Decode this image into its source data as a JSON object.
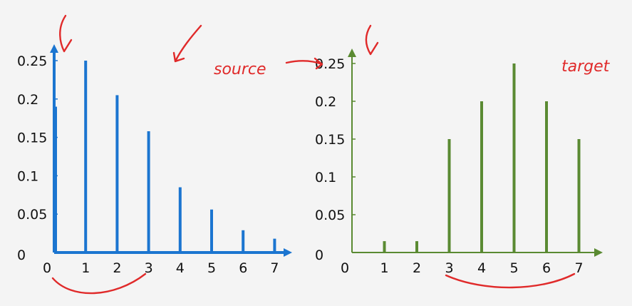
{
  "colors": {
    "background": "#f4f4f4",
    "source_series": "#1b75d0",
    "target_series": "#5a8a32",
    "annotation": "#e02a2a"
  },
  "annotations": {
    "source_note": "source",
    "target_note": "target"
  },
  "chart_data": [
    {
      "type": "bar",
      "x": [
        0,
        1,
        2,
        3,
        4,
        5,
        6,
        7
      ],
      "x_tick_labels": [
        "0",
        "1",
        "2",
        "3",
        "4",
        "5",
        "6",
        "7"
      ],
      "y_tick_labels": [
        "0",
        "0.05",
        "0.1",
        "0.15",
        "0.2",
        "0.25"
      ],
      "y_ticks": [
        0,
        0.05,
        0.1,
        0.15,
        0.2,
        0.25
      ],
      "ylim": [
        0,
        0.27
      ],
      "xlim": [
        0,
        7.8
      ],
      "grid": false,
      "series": [
        {
          "values": [
            0.19,
            0.25,
            0.205,
            0.158,
            0.085,
            0.056,
            0.029,
            0.018
          ]
        }
      ]
    },
    {
      "type": "bar",
      "x": [
        0,
        1,
        2,
        3,
        4,
        5,
        6,
        7
      ],
      "x_tick_labels": [
        "0",
        "1",
        "2",
        "3",
        "4",
        "5",
        "6",
        "7"
      ],
      "y_tick_labels": [
        "0",
        "0.05",
        "0.1",
        "0.15",
        "0.2",
        "0.25"
      ],
      "y_ticks": [
        0,
        0.05,
        0.1,
        0.15,
        0.2,
        0.25
      ],
      "ylim": [
        0,
        0.27
      ],
      "xlim": [
        0,
        7.8
      ],
      "grid": false,
      "series": [
        {
          "values": [
            0,
            0.015,
            0.015,
            0.15,
            0.2,
            0.25,
            0.2,
            0.15
          ]
        }
      ]
    }
  ]
}
